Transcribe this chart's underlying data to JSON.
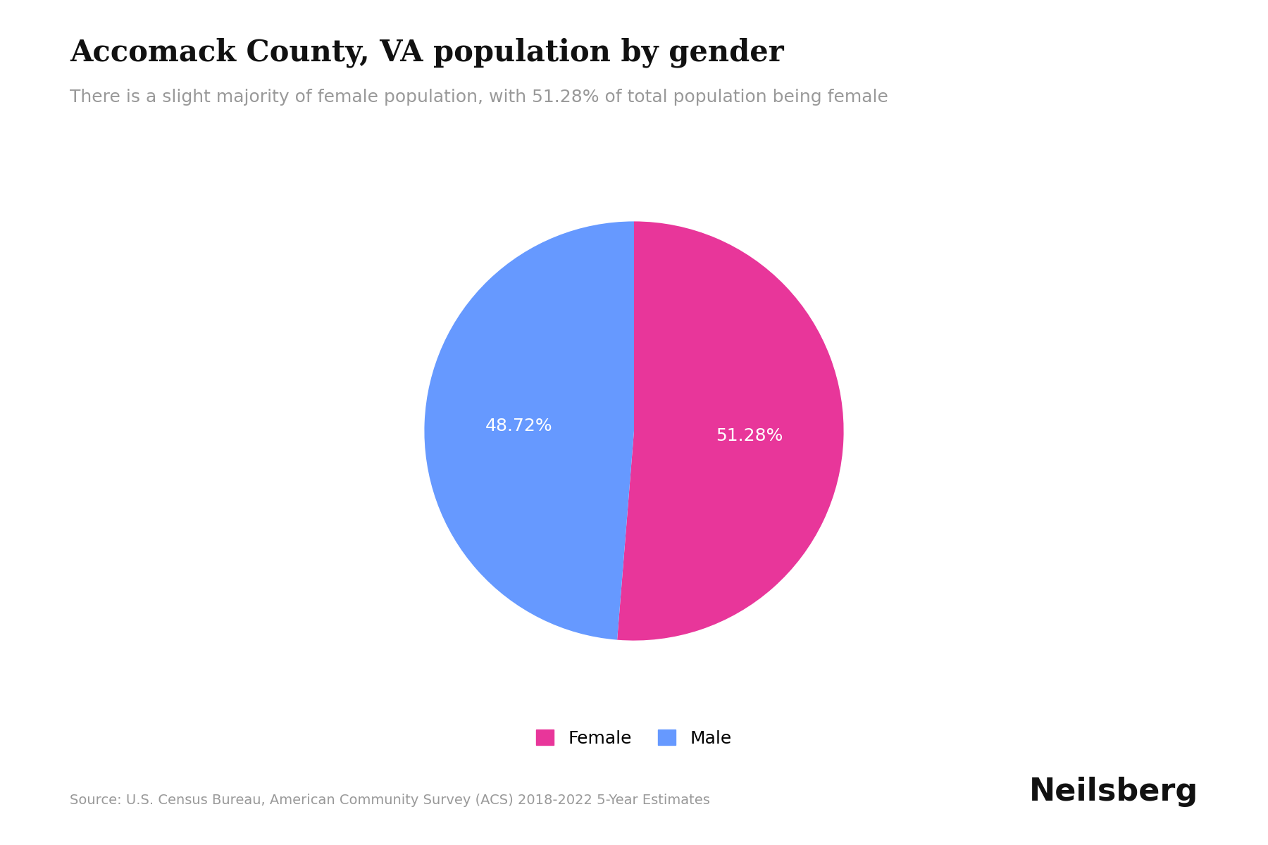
{
  "title": "Accomack County, VA population by gender",
  "subtitle": "There is a slight majority of female population, with 51.28% of total population being female",
  "values": [
    51.28,
    48.72
  ],
  "labels": [
    "Female",
    "Male"
  ],
  "colors": [
    "#E8369A",
    "#6699FF"
  ],
  "autopct_labels": [
    "51.28%",
    "48.72%"
  ],
  "legend_labels": [
    "Female",
    "Male"
  ],
  "source_text": "Source: U.S. Census Bureau, American Community Survey (ACS) 2018-2022 5-Year Estimates",
  "brand_text": "Neilsberg",
  "background_color": "#FFFFFF",
  "title_fontsize": 30,
  "subtitle_fontsize": 18,
  "autopct_fontsize": 18,
  "legend_fontsize": 18,
  "source_fontsize": 14,
  "brand_fontsize": 32,
  "startangle": 90
}
